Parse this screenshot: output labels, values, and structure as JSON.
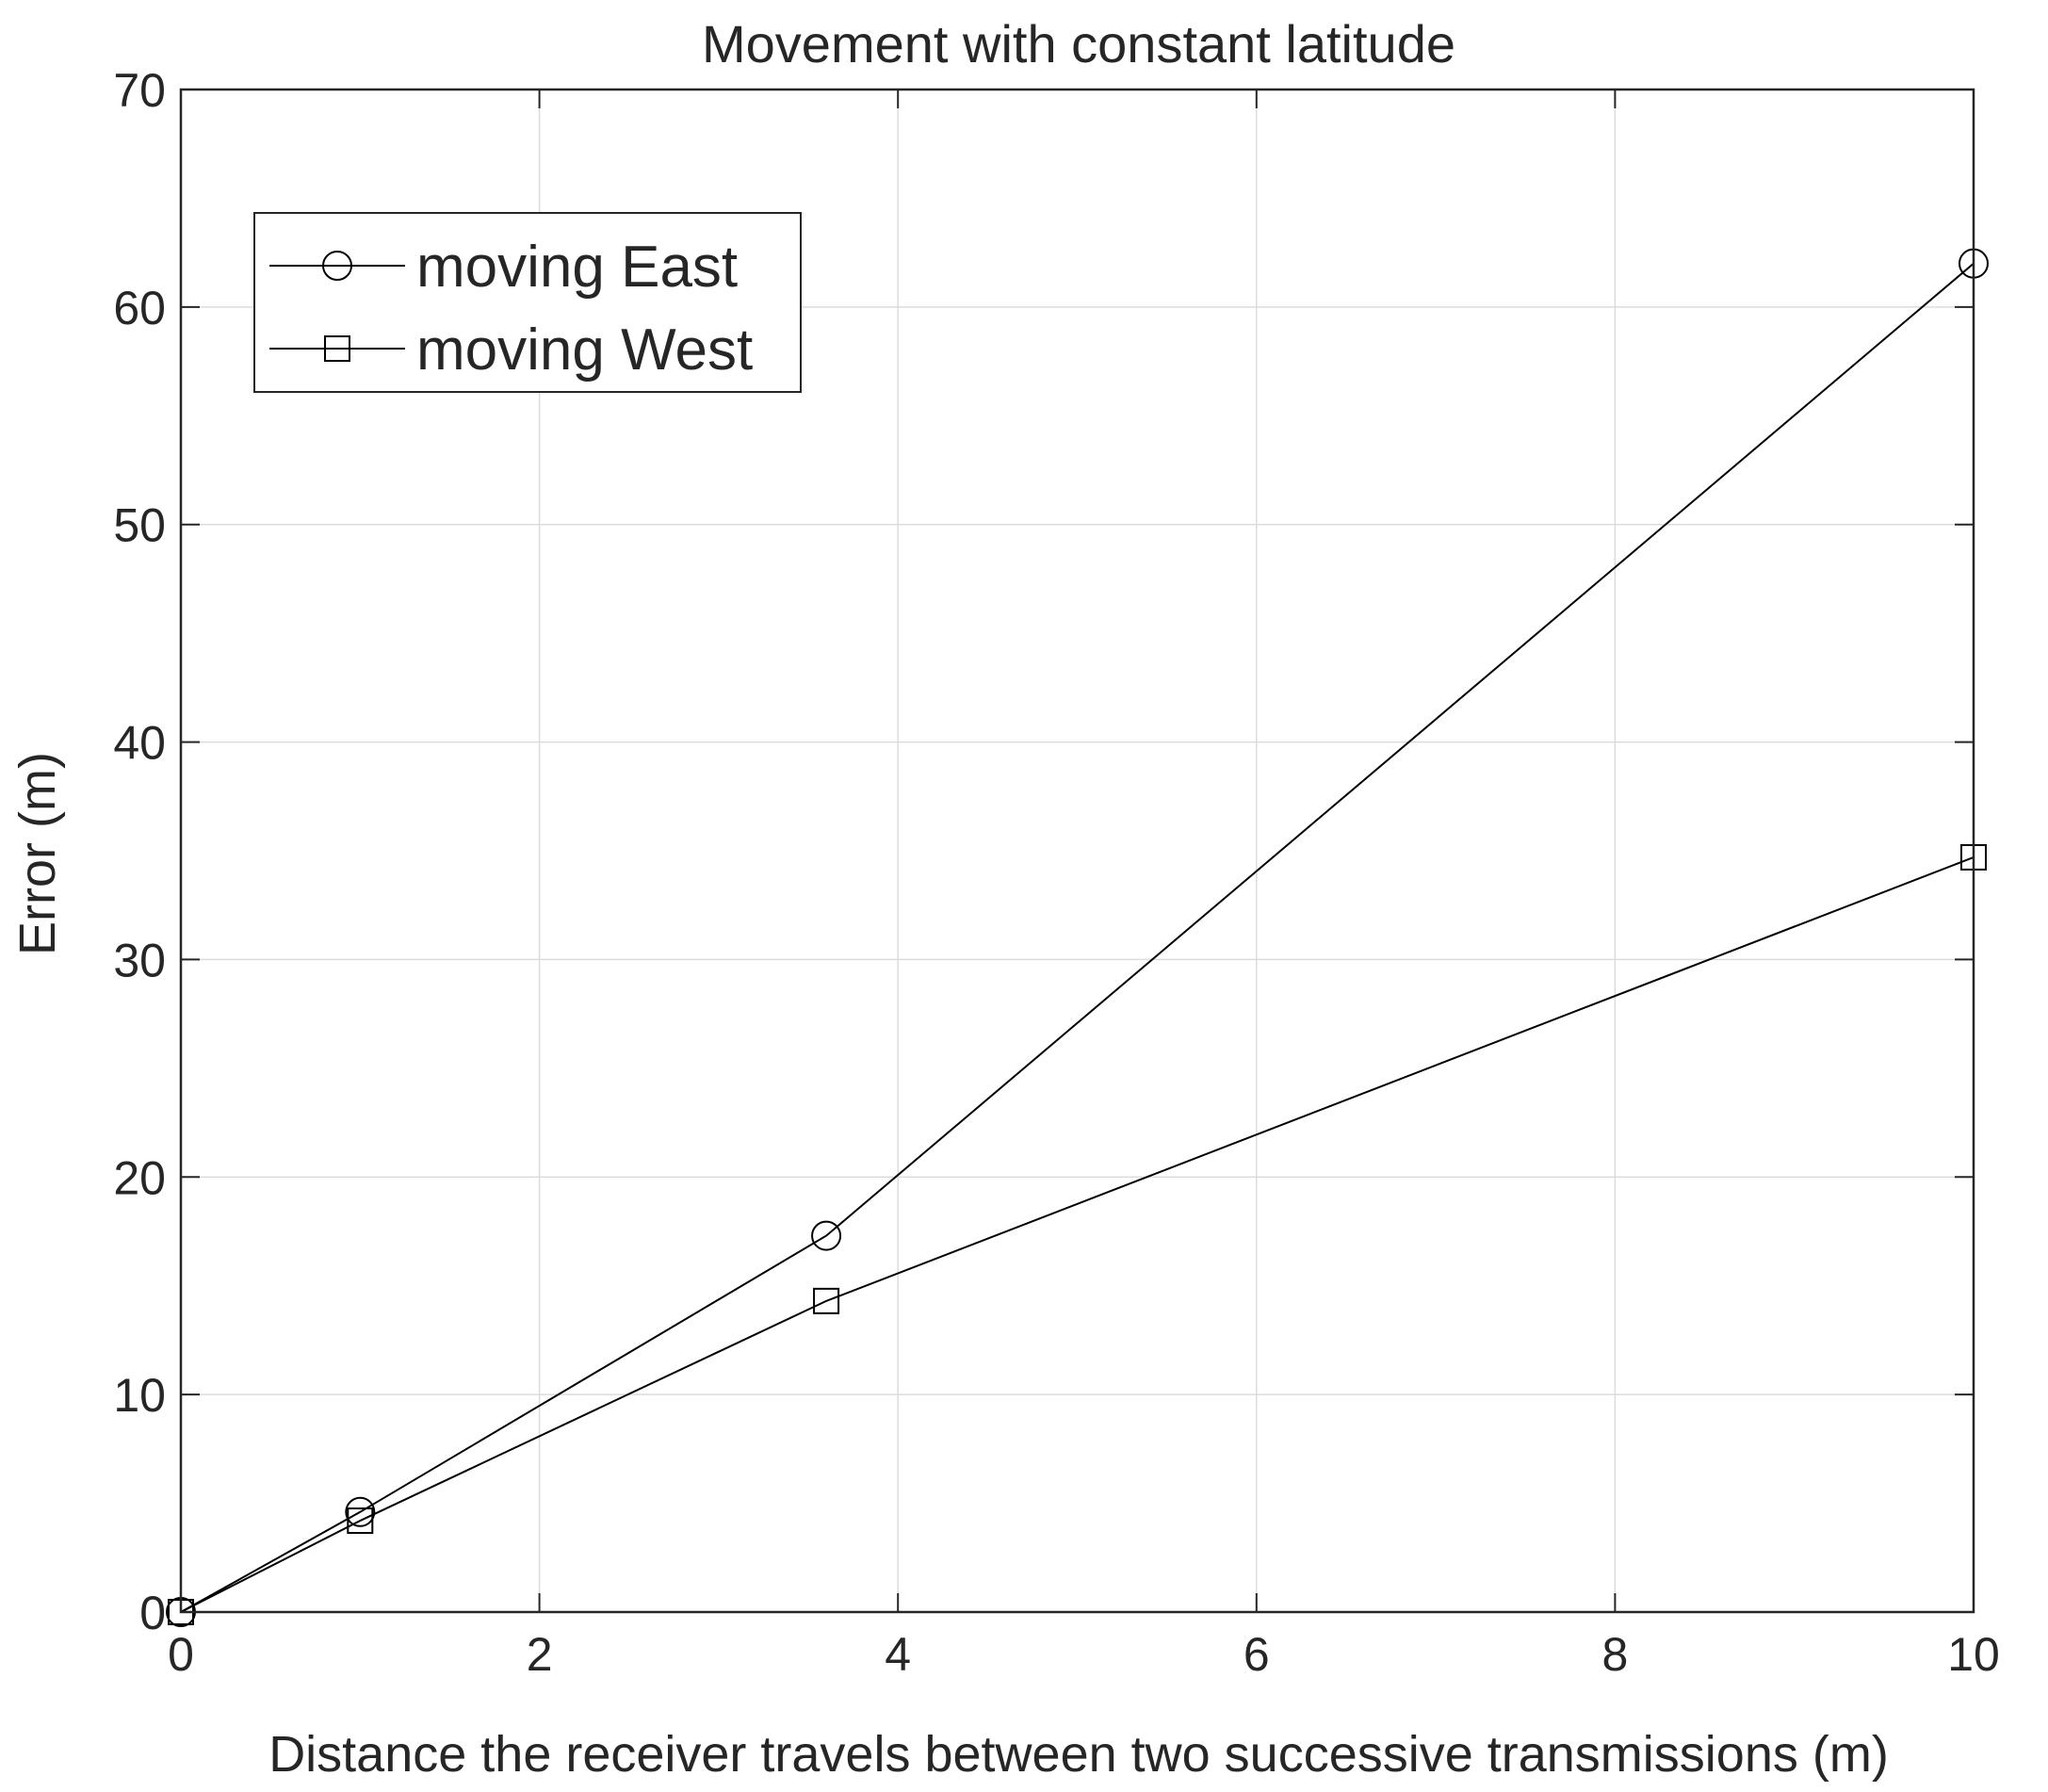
{
  "chart_data": {
    "type": "line",
    "title": "Movement with constant latitude",
    "xlabel": "Distance the receiver travels between two successive transmissions (m)",
    "ylabel": "Error (m)",
    "xlim": [
      0,
      10
    ],
    "ylim": [
      0,
      70
    ],
    "xticks": [
      "0",
      "2",
      "4",
      "6",
      "8",
      "10"
    ],
    "yticks": [
      "0",
      "10",
      "20",
      "30",
      "40",
      "50",
      "60",
      "70"
    ],
    "grid": true,
    "legend_position": "top-left",
    "series": [
      {
        "name": "moving East",
        "marker": "circle",
        "color": "#000000",
        "x": [
          0,
          1,
          3.6,
          10
        ],
        "y": [
          0,
          4.6,
          17.3,
          62
        ]
      },
      {
        "name": "moving West",
        "marker": "square",
        "color": "#000000",
        "x": [
          0,
          1,
          3.6,
          10
        ],
        "y": [
          0,
          4.2,
          14.3,
          34.7
        ]
      }
    ]
  }
}
